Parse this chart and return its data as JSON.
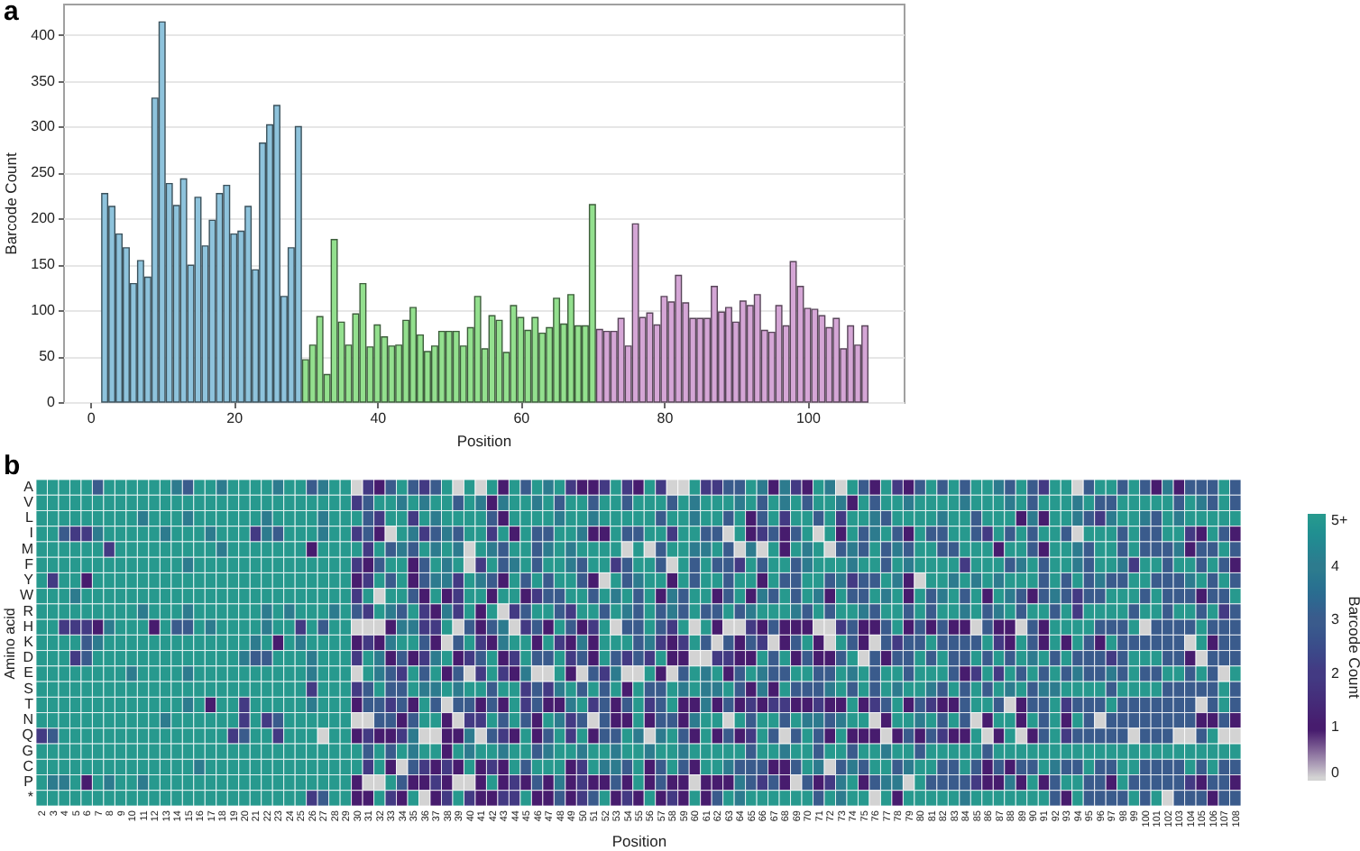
{
  "chart_data": [
    {
      "type": "bar",
      "title": "a",
      "xlabel": "Position",
      "ylabel": "Barcode Count",
      "xlim": [
        -3.8,
        113.4
      ],
      "ylim": [
        0,
        434
      ],
      "xticks": [
        0,
        20,
        40,
        60,
        80,
        100
      ],
      "yticks": [
        0,
        50,
        100,
        150,
        200,
        250,
        300,
        350,
        400
      ],
      "grid": "y",
      "series": [
        {
          "color": "#8ec3dc",
          "x": [
            2,
            3,
            4,
            5,
            6,
            7,
            8,
            9,
            10,
            11,
            12,
            13,
            14,
            15,
            16,
            17,
            18,
            19,
            20,
            21,
            22,
            23,
            24,
            25,
            26,
            27,
            28,
            29
          ],
          "values": [
            227,
            213,
            183,
            168,
            129,
            154,
            136,
            331,
            414,
            238,
            214,
            243,
            149,
            223,
            170,
            198,
            227,
            236,
            183,
            186,
            213,
            144,
            282,
            302,
            323,
            115,
            168,
            300
          ]
        },
        {
          "color": "#93e08e",
          "x": [
            30,
            31,
            32,
            33,
            34,
            35,
            36,
            37,
            38,
            39,
            40,
            41,
            42,
            43,
            44,
            45,
            46,
            47,
            48,
            49,
            50,
            51,
            52,
            53,
            54,
            55,
            56,
            57,
            58,
            59,
            60,
            61,
            62,
            63,
            64,
            65,
            66,
            67,
            68,
            69,
            70
          ],
          "values": [
            46,
            62,
            93,
            30,
            177,
            87,
            62,
            96,
            129,
            60,
            84,
            71,
            61,
            62,
            89,
            103,
            73,
            55,
            61,
            77,
            77,
            77,
            61,
            81,
            115,
            58,
            94,
            89,
            54,
            105,
            92,
            78,
            92,
            75,
            81,
            113,
            85,
            117,
            83,
            83,
            215
          ]
        },
        {
          "color": "#d5a6d6",
          "x": [
            71,
            72,
            73,
            74,
            75,
            76,
            77,
            78,
            79,
            80,
            81,
            82,
            83,
            84,
            85,
            86,
            87,
            88,
            89,
            90,
            91,
            92,
            93,
            94,
            95,
            96,
            97,
            98,
            99,
            100,
            101,
            102,
            103,
            104,
            105,
            106,
            107,
            108
          ],
          "values": [
            79,
            77,
            77,
            91,
            61,
            194,
            92,
            97,
            84,
            115,
            109,
            138,
            108,
            91,
            91,
            91,
            126,
            98,
            103,
            87,
            110,
            105,
            117,
            78,
            76,
            105,
            83,
            153,
            126,
            102,
            101,
            94,
            81,
            91,
            58,
            83,
            62,
            83
          ]
        }
      ]
    },
    {
      "type": "heatmap",
      "title": "b",
      "xlabel": "Position",
      "ylabel": "Amino acid",
      "clabel": "Barcode Count",
      "clim": [
        0,
        5
      ],
      "cticks": [
        0,
        1,
        2,
        3,
        4,
        {
          "value": 5,
          "label": "5+"
        }
      ],
      "categories": [
        "2",
        "3",
        "4",
        "5",
        "6",
        "7",
        "8",
        "9",
        "10",
        "11",
        "12",
        "13",
        "14",
        "15",
        "16",
        "17",
        "18",
        "19",
        "20",
        "21",
        "22",
        "23",
        "24",
        "25",
        "26",
        "27",
        "28",
        "29",
        "30",
        "31",
        "32",
        "33",
        "34",
        "35",
        "36",
        "37",
        "38",
        "39",
        "40",
        "41",
        "42",
        "43",
        "44",
        "45",
        "46",
        "47",
        "48",
        "49",
        "50",
        "51",
        "52",
        "53",
        "54",
        "55",
        "56",
        "57",
        "58",
        "59",
        "60",
        "61",
        "62",
        "63",
        "64",
        "65",
        "66",
        "67",
        "68",
        "69",
        "70",
        "71",
        "72",
        "73",
        "74",
        "75",
        "76",
        "77",
        "78",
        "79",
        "80",
        "81",
        "82",
        "83",
        "84",
        "85",
        "86",
        "87",
        "88",
        "89",
        "90",
        "91",
        "92",
        "93",
        "94",
        "95",
        "96",
        "97",
        "98",
        "99",
        "100",
        "101",
        "102",
        "103",
        "104",
        "105",
        "106",
        "107",
        "108"
      ],
      "y_categories": [
        "A",
        "V",
        "L",
        "I",
        "M",
        "F",
        "Y",
        "W",
        "R",
        "H",
        "K",
        "D",
        "E",
        "S",
        "T",
        "N",
        "Q",
        "G",
        "C",
        "P",
        "*"
      ],
      "cells": [
        [
          5,
          5,
          5,
          5,
          5,
          3,
          5,
          5,
          5,
          5,
          5,
          5,
          4,
          3,
          5,
          5,
          4,
          5,
          5,
          5,
          5,
          4,
          5,
          5,
          3,
          4,
          5,
          5,
          0,
          2,
          1,
          3,
          5,
          3,
          2,
          3,
          5,
          0,
          5,
          0,
          5,
          1,
          5,
          3,
          5,
          4,
          5,
          2,
          1,
          1,
          2,
          5,
          2,
          1,
          5,
          2,
          0,
          0,
          5,
          2,
          2,
          3,
          3,
          5,
          4,
          1,
          4,
          2,
          1,
          5,
          4,
          0,
          5,
          3,
          1,
          5,
          2,
          1,
          3,
          5,
          3,
          5,
          3,
          5,
          5,
          4,
          3,
          5,
          3,
          2,
          5,
          5,
          0,
          3,
          5,
          5,
          3,
          5,
          3,
          1,
          4,
          1,
          3,
          3,
          3,
          5,
          3
        ],
        [
          5,
          5,
          5,
          5,
          5,
          5,
          5,
          5,
          5,
          5,
          5,
          5,
          5,
          5,
          5,
          5,
          5,
          5,
          5,
          5,
          5,
          5,
          5,
          5,
          5,
          5,
          5,
          5,
          2,
          3,
          5,
          5,
          4,
          5,
          4,
          5,
          5,
          3,
          5,
          4,
          1,
          4,
          5,
          5,
          4,
          5,
          3,
          5,
          5,
          3,
          5,
          5,
          3,
          5,
          5,
          5,
          3,
          5,
          4,
          5,
          5,
          5,
          4,
          5,
          3,
          5,
          4,
          5,
          3,
          5,
          5,
          4,
          1,
          5,
          3,
          5,
          5,
          4,
          5,
          5,
          5,
          5,
          4,
          5,
          5,
          5,
          4,
          5,
          3,
          5,
          5,
          5,
          4,
          5,
          3,
          3,
          5,
          5,
          5,
          5,
          5,
          3,
          5,
          4,
          3,
          5,
          3
        ],
        [
          5,
          5,
          5,
          5,
          5,
          5,
          5,
          5,
          5,
          4,
          5,
          5,
          5,
          4,
          5,
          5,
          5,
          5,
          5,
          5,
          4,
          5,
          5,
          5,
          5,
          4,
          5,
          5,
          5,
          3,
          2,
          5,
          5,
          2,
          5,
          4,
          5,
          5,
          5,
          5,
          3,
          1,
          5,
          5,
          5,
          5,
          4,
          5,
          5,
          4,
          5,
          5,
          5,
          5,
          5,
          3,
          5,
          5,
          4,
          5,
          5,
          3,
          5,
          1,
          3,
          5,
          2,
          5,
          5,
          3,
          5,
          2,
          5,
          5,
          4,
          3,
          5,
          5,
          5,
          5,
          4,
          5,
          5,
          3,
          5,
          5,
          5,
          1,
          4,
          1,
          5,
          5,
          4,
          3,
          2,
          4,
          5,
          5,
          4,
          3,
          5,
          4,
          5,
          5,
          5,
          5,
          5
        ],
        [
          5,
          5,
          3,
          2,
          2,
          4,
          5,
          5,
          5,
          5,
          5,
          4,
          5,
          5,
          5,
          4,
          5,
          5,
          5,
          2,
          4,
          3,
          5,
          5,
          5,
          4,
          5,
          5,
          2,
          3,
          1,
          0,
          5,
          4,
          2,
          3,
          4,
          3,
          5,
          5,
          2,
          5,
          1,
          5,
          3,
          3,
          5,
          5,
          4,
          1,
          1,
          5,
          3,
          3,
          5,
          5,
          2,
          5,
          5,
          3,
          3,
          0,
          5,
          1,
          2,
          3,
          1,
          3,
          5,
          0,
          5,
          1,
          5,
          3,
          4,
          5,
          3,
          1,
          5,
          3,
          3,
          5,
          5,
          3,
          2,
          5,
          3,
          5,
          3,
          5,
          5,
          3,
          0,
          5,
          5,
          5,
          3,
          5,
          3,
          3,
          5,
          5,
          2,
          1,
          5,
          3,
          1
        ],
        [
          5,
          5,
          5,
          5,
          5,
          5,
          2,
          5,
          5,
          5,
          5,
          5,
          5,
          5,
          5,
          5,
          4,
          5,
          5,
          5,
          5,
          5,
          5,
          5,
          1,
          5,
          5,
          5,
          5,
          2,
          5,
          3,
          4,
          3,
          5,
          4,
          5,
          4,
          0,
          5,
          4,
          3,
          5,
          5,
          3,
          4,
          5,
          4,
          5,
          5,
          5,
          5,
          0,
          5,
          0,
          3,
          5,
          5,
          4,
          4,
          5,
          3,
          0,
          4,
          0,
          5,
          1,
          5,
          4,
          5,
          0,
          3,
          4,
          3,
          5,
          3,
          4,
          3,
          5,
          5,
          3,
          3,
          5,
          5,
          5,
          1,
          5,
          5,
          3,
          1,
          5,
          5,
          4,
          3,
          5,
          5,
          3,
          5,
          3,
          3,
          3,
          4,
          1,
          3,
          3,
          5,
          3
        ],
        [
          5,
          5,
          5,
          5,
          5,
          5,
          5,
          5,
          5,
          5,
          5,
          5,
          5,
          4,
          5,
          5,
          5,
          5,
          5,
          5,
          5,
          5,
          5,
          5,
          5,
          5,
          5,
          5,
          2,
          1,
          3,
          5,
          5,
          1,
          3,
          5,
          4,
          5,
          0,
          2,
          5,
          3,
          4,
          5,
          3,
          5,
          5,
          4,
          3,
          5,
          5,
          2,
          3,
          5,
          5,
          3,
          0,
          5,
          3,
          5,
          3,
          3,
          2,
          5,
          3,
          5,
          5,
          3,
          4,
          5,
          5,
          5,
          4,
          5,
          5,
          3,
          5,
          4,
          5,
          5,
          5,
          5,
          2,
          5,
          5,
          5,
          3,
          4,
          5,
          3,
          5,
          5,
          4,
          3,
          5,
          5,
          4,
          2,
          5,
          5,
          3,
          5,
          5,
          3,
          5,
          3,
          1
        ],
        [
          5,
          2,
          5,
          5,
          1,
          5,
          5,
          5,
          5,
          5,
          5,
          5,
          5,
          5,
          5,
          5,
          5,
          5,
          5,
          5,
          5,
          5,
          5,
          5,
          5,
          5,
          5,
          5,
          1,
          2,
          5,
          3,
          5,
          1,
          3,
          4,
          4,
          2,
          5,
          4,
          3,
          1,
          5,
          3,
          5,
          3,
          5,
          5,
          3,
          1,
          0,
          5,
          3,
          4,
          5,
          5,
          1,
          5,
          3,
          5,
          5,
          3,
          5,
          5,
          1,
          5,
          3,
          3,
          5,
          5,
          3,
          4,
          2,
          3,
          3,
          5,
          4,
          1,
          0,
          5,
          5,
          4,
          5,
          4,
          5,
          4,
          5,
          5,
          5,
          3,
          5,
          3,
          5,
          3,
          4,
          3,
          3,
          5,
          5,
          3,
          3,
          3,
          4,
          5,
          3,
          5,
          3
        ],
        [
          5,
          5,
          5,
          4,
          5,
          5,
          5,
          5,
          5,
          5,
          5,
          5,
          5,
          5,
          5,
          5,
          5,
          5,
          5,
          5,
          5,
          5,
          5,
          5,
          5,
          5,
          5,
          5,
          2,
          5,
          0,
          5,
          5,
          3,
          1,
          5,
          1,
          2,
          5,
          5,
          1,
          5,
          5,
          1,
          2,
          3,
          3,
          5,
          5,
          3,
          5,
          4,
          5,
          3,
          5,
          1,
          4,
          3,
          5,
          5,
          1,
          3,
          5,
          1,
          4,
          3,
          5,
          3,
          5,
          4,
          1,
          5,
          3,
          3,
          5,
          4,
          5,
          1,
          5,
          3,
          4,
          5,
          3,
          5,
          1,
          5,
          4,
          3,
          1,
          3,
          4,
          3,
          2,
          3,
          3,
          5,
          5,
          5,
          3,
          5,
          3,
          3,
          3,
          1,
          3,
          3,
          5
        ],
        [
          5,
          5,
          5,
          5,
          5,
          5,
          5,
          5,
          5,
          4,
          5,
          5,
          5,
          4,
          5,
          5,
          5,
          5,
          5,
          5,
          4,
          5,
          4,
          5,
          5,
          5,
          4,
          5,
          3,
          2,
          5,
          4,
          3,
          5,
          2,
          1,
          4,
          2,
          5,
          1,
          5,
          0,
          2,
          3,
          5,
          5,
          3,
          2,
          5,
          5,
          3,
          5,
          4,
          3,
          5,
          3,
          4,
          3,
          5,
          3,
          3,
          5,
          3,
          4,
          5,
          5,
          5,
          4,
          3,
          5,
          3,
          5,
          5,
          4,
          3,
          5,
          5,
          3,
          5,
          3,
          5,
          5,
          4,
          5,
          3,
          4,
          5,
          3,
          5,
          5,
          3,
          5,
          2,
          5,
          5,
          5,
          5,
          3,
          5,
          5,
          3,
          5,
          5,
          3,
          5,
          2,
          3
        ],
        [
          5,
          5,
          2,
          2,
          2,
          1,
          4,
          5,
          5,
          5,
          1,
          5,
          3,
          3,
          5,
          4,
          5,
          5,
          5,
          5,
          4,
          5,
          5,
          2,
          5,
          3,
          5,
          5,
          0,
          0,
          0,
          1,
          4,
          4,
          2,
          2,
          5,
          0,
          3,
          1,
          3,
          4,
          0,
          2,
          3,
          1,
          5,
          3,
          1,
          2,
          5,
          0,
          3,
          3,
          5,
          3,
          2,
          5,
          0,
          5,
          1,
          0,
          0,
          2,
          1,
          3,
          1,
          1,
          1,
          0,
          0,
          2,
          3,
          1,
          1,
          3,
          5,
          1,
          3,
          1,
          3,
          1,
          1,
          0,
          3,
          1,
          1,
          0,
          3,
          1,
          5,
          5,
          5,
          5,
          3,
          3,
          3,
          5,
          0,
          3,
          3,
          3,
          3,
          5,
          3,
          3,
          3
        ],
        [
          5,
          5,
          5,
          5,
          3,
          4,
          5,
          5,
          5,
          5,
          5,
          5,
          5,
          5,
          5,
          5,
          5,
          5,
          5,
          4,
          5,
          1,
          5,
          4,
          5,
          5,
          5,
          5,
          1,
          2,
          1,
          4,
          5,
          5,
          3,
          1,
          0,
          3,
          5,
          2,
          1,
          4,
          5,
          5,
          1,
          5,
          2,
          1,
          4,
          1,
          5,
          5,
          5,
          3,
          4,
          2,
          1,
          2,
          5,
          3,
          0,
          3,
          1,
          3,
          2,
          0,
          1,
          3,
          5,
          1,
          0,
          5,
          3,
          1,
          0,
          3,
          2,
          3,
          3,
          5,
          3,
          3,
          3,
          3,
          5,
          2,
          1,
          5,
          3,
          1,
          5,
          1,
          5,
          3,
          1,
          5,
          3,
          3,
          3,
          3,
          3,
          3,
          0,
          5,
          1,
          3,
          3
        ],
        [
          5,
          5,
          5,
          2,
          3,
          5,
          5,
          5,
          5,
          5,
          5,
          5,
          5,
          5,
          5,
          5,
          5,
          5,
          4,
          3,
          3,
          5,
          5,
          5,
          4,
          5,
          5,
          5,
          2,
          5,
          4,
          1,
          3,
          1,
          2,
          4,
          5,
          1,
          2,
          3,
          5,
          1,
          2,
          5,
          3,
          3,
          5,
          2,
          3,
          1,
          5,
          3,
          2,
          3,
          2,
          5,
          1,
          1,
          0,
          0,
          2,
          2,
          1,
          1,
          5,
          3,
          5,
          1,
          3,
          1,
          1,
          3,
          5,
          0,
          3,
          1,
          3,
          3,
          5,
          3,
          5,
          3,
          3,
          5,
          3,
          5,
          3,
          5,
          4,
          5,
          3,
          5,
          3,
          3,
          3,
          2,
          3,
          5,
          5,
          5,
          3,
          3,
          1,
          0,
          3,
          3,
          3
        ],
        [
          5,
          5,
          5,
          5,
          5,
          5,
          5,
          5,
          4,
          5,
          5,
          5,
          5,
          4,
          5,
          5,
          5,
          5,
          5,
          5,
          5,
          5,
          5,
          5,
          4,
          5,
          5,
          5,
          0,
          5,
          4,
          3,
          2,
          5,
          3,
          5,
          1,
          3,
          0,
          2,
          5,
          2,
          1,
          4,
          0,
          0,
          5,
          1,
          0,
          3,
          2,
          4,
          0,
          0,
          5,
          1,
          0,
          3,
          5,
          4,
          5,
          1,
          3,
          5,
          4,
          3,
          3,
          5,
          5,
          3,
          3,
          5,
          4,
          5,
          3,
          5,
          5,
          3,
          5,
          5,
          5,
          3,
          1,
          2,
          5,
          2,
          5,
          3,
          5,
          3,
          5,
          3,
          4,
          3,
          3,
          4,
          3,
          5,
          3,
          3,
          5,
          5,
          3,
          5,
          3,
          0,
          5
        ],
        [
          5,
          5,
          5,
          5,
          5,
          5,
          5,
          5,
          5,
          5,
          5,
          5,
          5,
          5,
          5,
          5,
          5,
          5,
          5,
          5,
          5,
          5,
          5,
          5,
          2,
          5,
          5,
          5,
          2,
          3,
          5,
          3,
          3,
          5,
          4,
          4,
          5,
          4,
          5,
          5,
          3,
          5,
          5,
          2,
          3,
          2,
          4,
          5,
          3,
          5,
          3,
          5,
          1,
          5,
          3,
          3,
          5,
          4,
          5,
          4,
          4,
          5,
          3,
          1,
          4,
          1,
          5,
          3,
          3,
          3,
          4,
          5,
          3,
          5,
          3,
          5,
          4,
          5,
          5,
          4,
          3,
          5,
          3,
          5,
          3,
          5,
          4,
          5,
          3,
          4,
          4,
          5,
          5,
          5,
          5,
          3,
          5,
          5,
          5,
          5,
          3,
          3,
          3,
          3,
          3,
          5,
          3
        ],
        [
          5,
          5,
          5,
          5,
          5,
          5,
          5,
          5,
          5,
          5,
          5,
          5,
          5,
          4,
          5,
          1,
          5,
          5,
          2,
          5,
          5,
          5,
          5,
          5,
          4,
          5,
          5,
          5,
          1,
          3,
          3,
          2,
          3,
          1,
          5,
          3,
          0,
          3,
          3,
          1,
          3,
          1,
          5,
          2,
          3,
          1,
          1,
          4,
          5,
          2,
          3,
          1,
          3,
          5,
          2,
          3,
          5,
          1,
          1,
          4,
          1,
          3,
          1,
          2,
          1,
          2,
          2,
          1,
          1,
          2,
          1,
          1,
          5,
          1,
          2,
          3,
          5,
          1,
          3,
          2,
          1,
          1,
          3,
          5,
          5,
          3,
          0,
          1,
          3,
          3,
          5,
          2,
          3,
          3,
          3,
          5,
          3,
          3,
          3,
          3,
          3,
          3,
          3,
          0,
          3,
          5,
          3
        ],
        [
          5,
          5,
          5,
          5,
          5,
          5,
          5,
          5,
          5,
          5,
          5,
          4,
          5,
          5,
          5,
          5,
          5,
          5,
          2,
          5,
          2,
          3,
          5,
          5,
          5,
          5,
          5,
          5,
          0,
          0,
          3,
          3,
          1,
          3,
          5,
          5,
          1,
          0,
          2,
          2,
          5,
          3,
          5,
          3,
          1,
          5,
          4,
          2,
          3,
          0,
          3,
          1,
          1,
          5,
          1,
          3,
          3,
          1,
          4,
          5,
          5,
          0,
          5,
          3,
          5,
          5,
          3,
          5,
          4,
          4,
          3,
          4,
          5,
          5,
          0,
          1,
          5,
          5,
          4,
          5,
          3,
          5,
          3,
          0,
          1,
          5,
          5,
          1,
          5,
          3,
          5,
          1,
          5,
          3,
          0,
          3,
          3,
          3,
          3,
          3,
          3,
          3,
          3,
          1,
          1,
          3,
          1
        ],
        [
          2,
          3,
          5,
          5,
          5,
          5,
          5,
          5,
          5,
          5,
          5,
          5,
          5,
          5,
          5,
          5,
          5,
          2,
          3,
          5,
          5,
          2,
          5,
          5,
          5,
          0,
          5,
          5,
          1,
          2,
          1,
          1,
          2,
          4,
          0,
          0,
          1,
          1,
          4,
          0,
          3,
          2,
          1,
          5,
          1,
          3,
          5,
          2,
          5,
          1,
          3,
          3,
          5,
          4,
          0,
          4,
          5,
          3,
          1,
          5,
          1,
          3,
          1,
          2,
          5,
          3,
          0,
          3,
          5,
          3,
          1,
          5,
          1,
          1,
          1,
          0,
          1,
          3,
          1,
          3,
          2,
          1,
          1,
          5,
          0,
          1,
          5,
          0,
          1,
          3,
          5,
          2,
          3,
          3,
          3,
          3,
          3,
          0,
          3,
          3,
          3,
          0,
          0,
          3,
          5,
          0,
          0
        ],
        [
          5,
          5,
          5,
          5,
          5,
          5,
          5,
          5,
          5,
          5,
          5,
          5,
          5,
          5,
          5,
          5,
          5,
          5,
          5,
          5,
          5,
          5,
          5,
          5,
          5,
          5,
          5,
          5,
          5,
          3,
          5,
          3,
          5,
          4,
          5,
          5,
          1,
          5,
          4,
          5,
          5,
          4,
          5,
          5,
          3,
          4,
          5,
          5,
          4,
          5,
          5,
          4,
          5,
          5,
          4,
          5,
          5,
          4,
          5,
          5,
          5,
          5,
          5,
          3,
          5,
          5,
          4,
          5,
          5,
          3,
          5,
          5,
          3,
          5,
          5,
          4,
          5,
          5,
          3,
          5,
          5,
          5,
          5,
          5,
          3,
          5,
          5,
          5,
          5,
          5,
          5,
          5,
          5,
          5,
          5,
          5,
          5,
          5,
          5,
          5,
          5,
          5,
          5,
          5,
          5,
          5,
          5
        ],
        [
          5,
          5,
          5,
          5,
          5,
          5,
          5,
          5,
          5,
          5,
          5,
          5,
          5,
          5,
          4,
          5,
          5,
          5,
          5,
          5,
          5,
          5,
          5,
          5,
          5,
          5,
          5,
          5,
          5,
          2,
          5,
          1,
          0,
          3,
          2,
          1,
          2,
          1,
          5,
          1,
          2,
          1,
          5,
          3,
          5,
          5,
          5,
          1,
          2,
          5,
          4,
          4,
          3,
          5,
          1,
          3,
          5,
          3,
          1,
          5,
          5,
          4,
          3,
          3,
          3,
          1,
          1,
          3,
          5,
          4,
          0,
          3,
          4,
          3,
          5,
          5,
          3,
          4,
          5,
          5,
          3,
          3,
          5,
          3,
          1,
          3,
          1,
          3,
          3,
          5,
          4,
          3,
          3,
          5,
          3,
          3,
          5,
          5,
          3,
          3,
          3,
          3,
          5,
          3,
          5,
          3,
          3
        ],
        [
          5,
          4,
          4,
          5,
          1,
          5,
          4,
          5,
          5,
          4,
          5,
          5,
          5,
          5,
          5,
          5,
          5,
          5,
          5,
          5,
          5,
          5,
          5,
          5,
          5,
          5,
          5,
          5,
          1,
          0,
          0,
          5,
          3,
          1,
          1,
          2,
          1,
          0,
          0,
          1,
          5,
          1,
          2,
          1,
          3,
          1,
          4,
          1,
          2,
          1,
          1,
          3,
          1,
          5,
          1,
          3,
          1,
          1,
          0,
          1,
          1,
          1,
          4,
          3,
          2,
          3,
          1,
          0,
          3,
          1,
          2,
          4,
          5,
          1,
          3,
          4,
          4,
          0,
          5,
          3,
          3,
          3,
          3,
          2,
          1,
          1,
          4,
          1,
          5,
          1,
          3,
          5,
          5,
          3,
          3,
          1,
          5,
          3,
          3,
          3,
          3,
          3,
          2,
          1,
          3,
          3,
          1
        ],
        [
          5,
          5,
          5,
          5,
          5,
          5,
          5,
          5,
          5,
          5,
          5,
          5,
          5,
          5,
          5,
          5,
          5,
          5,
          5,
          5,
          5,
          5,
          5,
          5,
          2,
          3,
          5,
          5,
          1,
          1,
          5,
          2,
          1,
          5,
          0,
          1,
          2,
          5,
          2,
          1,
          1,
          2,
          2,
          5,
          1,
          1,
          3,
          1,
          2,
          3,
          5,
          1,
          2,
          1,
          5,
          1,
          2,
          1,
          5,
          1,
          3,
          5,
          4,
          5,
          5,
          5,
          5,
          5,
          5,
          3,
          5,
          4,
          5,
          5,
          0,
          5,
          1,
          5,
          5,
          5,
          5,
          5,
          4,
          5,
          5,
          5,
          5,
          5,
          5,
          5,
          3,
          1,
          5,
          3,
          3,
          3,
          3,
          5,
          3,
          5,
          0,
          3,
          3,
          3,
          1,
          3,
          3
        ]
      ]
    }
  ]
}
